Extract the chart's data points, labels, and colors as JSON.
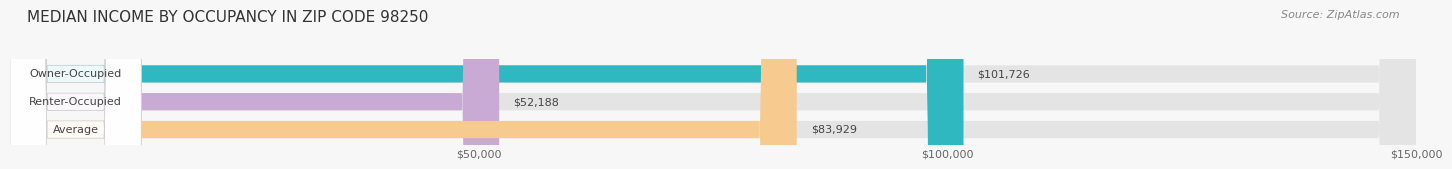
{
  "title": "MEDIAN INCOME BY OCCUPANCY IN ZIP CODE 98250",
  "source": "Source: ZipAtlas.com",
  "categories": [
    "Owner-Occupied",
    "Renter-Occupied",
    "Average"
  ],
  "values": [
    101726,
    52188,
    83929
  ],
  "labels": [
    "$101,726",
    "$52,188",
    "$83,929"
  ],
  "bar_colors": [
    "#30b8c0",
    "#c9aad4",
    "#f7ca8f"
  ],
  "bar_bg_color": "#e4e4e4",
  "xlim": [
    0,
    150000
  ],
  "xticks": [
    50000,
    100000,
    150000
  ],
  "xtick_labels": [
    "$50,000",
    "$100,000",
    "$150,000"
  ],
  "title_fontsize": 11,
  "source_fontsize": 8,
  "label_fontsize": 8,
  "category_fontsize": 8,
  "bar_height": 0.62,
  "background_color": "#f7f7f7"
}
